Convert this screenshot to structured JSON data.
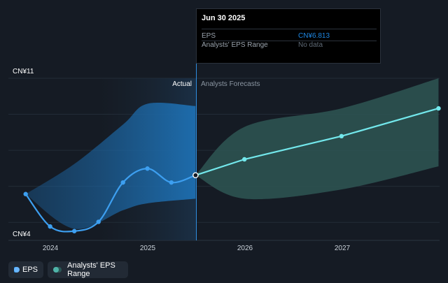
{
  "tooltip": {
    "date": "Jun 30 2025",
    "rows": [
      {
        "label": "EPS",
        "value": "CN¥6.813",
        "color": "#1e88e5"
      },
      {
        "label": "Analysts' EPS Range",
        "value": "No data",
        "color": "#5f6a76"
      }
    ]
  },
  "legend": [
    {
      "label": "EPS",
      "color": "#2a97ef",
      "dot": "#6ab7ff"
    },
    {
      "label": "Analysts' EPS Range",
      "color": "#2a5755",
      "dot": "#4fb3a8"
    }
  ],
  "colors": {
    "background": "#151b24",
    "eps_line": "#3d9ff0",
    "forecast_line": "#73e8ec",
    "actual_band": "#1e76bd",
    "forecast_band": "#2e5654",
    "divider": "#2f8ee0"
  },
  "chart_data": {
    "type": "line",
    "y_unit": "CN¥",
    "ylim": [
      4,
      11
    ],
    "y_tick_labels": [
      "CN¥11",
      "CN¥4"
    ],
    "x_tick_labels": [
      "2024",
      "2025",
      "2026",
      "2027"
    ],
    "divider_date": "2025-06-30",
    "section_labels": {
      "actual": "Actual",
      "forecast": "Analysts Forecasts"
    },
    "series": [
      {
        "name": "EPS",
        "points": [
          {
            "date": "2023-09-30",
            "value": 6.0
          },
          {
            "date": "2023-12-31",
            "value": 4.6
          },
          {
            "date": "2024-03-31",
            "value": 4.4
          },
          {
            "date": "2024-06-30",
            "value": 4.8
          },
          {
            "date": "2024-09-30",
            "value": 6.5
          },
          {
            "date": "2024-12-31",
            "value": 7.1
          },
          {
            "date": "2025-03-31",
            "value": 6.5
          },
          {
            "date": "2025-06-30",
            "value": 6.813
          }
        ]
      },
      {
        "name": "Analysts Forecasts",
        "points": [
          {
            "date": "2025-06-30",
            "value": 6.813
          },
          {
            "date": "2025-12-31",
            "value": 7.5
          },
          {
            "date": "2026-12-31",
            "value": 8.5
          },
          {
            "date": "2027-12-31",
            "value": 9.7
          }
        ]
      }
    ],
    "actual_range": {
      "dates": [
        "2023-09-30",
        "2024-03-31",
        "2024-09-30",
        "2024-12-31",
        "2025-06-30"
      ],
      "high": [
        6.0,
        7.3,
        9.0,
        9.9,
        9.8
      ],
      "low": [
        6.0,
        4.5,
        5.3,
        5.6,
        5.8
      ]
    },
    "forecast_range": {
      "dates": [
        "2025-06-30",
        "2025-12-31",
        "2026-12-31",
        "2027-12-31"
      ],
      "high": [
        6.813,
        8.9,
        9.7,
        11.0
      ],
      "low": [
        6.813,
        5.8,
        6.2,
        7.2
      ]
    },
    "grid": true
  }
}
